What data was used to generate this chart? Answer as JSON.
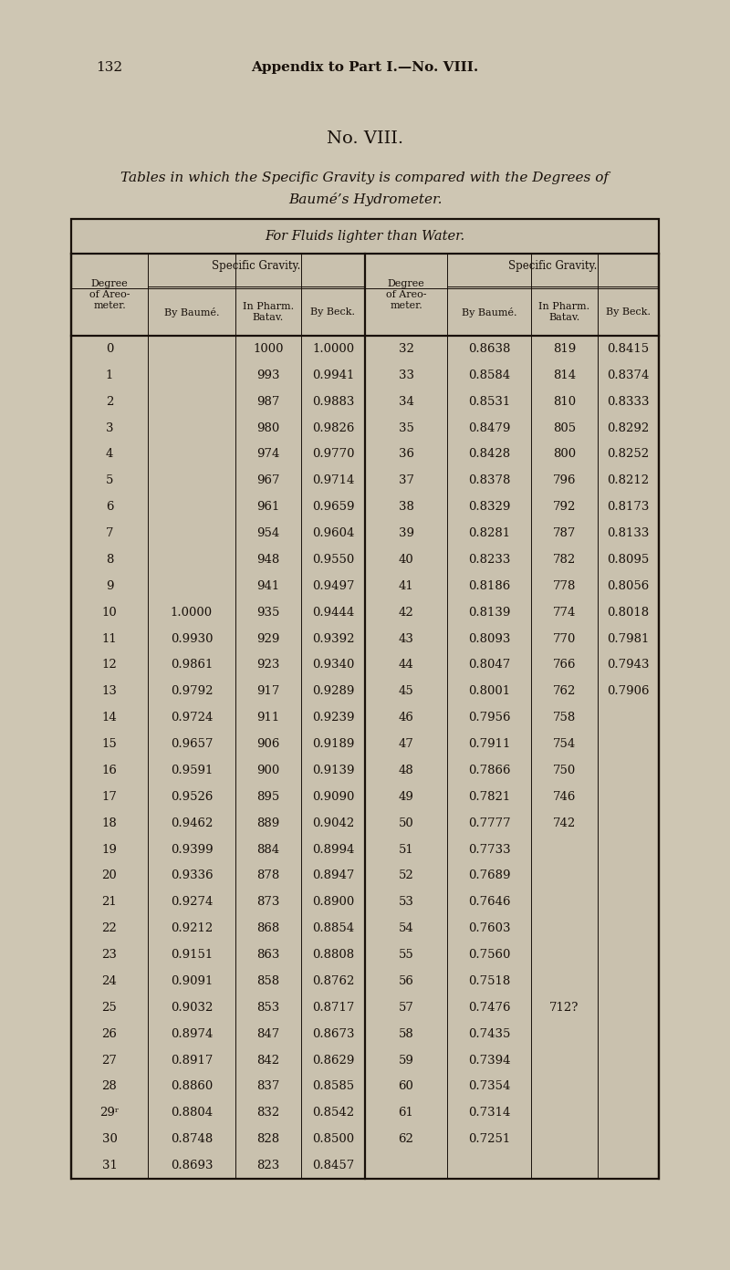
{
  "page_num": "132",
  "header_title": "Appendix to Part I.—No. VIII.",
  "title1": "No. VIII.",
  "title2": "Tables in which the Specific Gravity is compared with the Degrees of",
  "title3": "Baumé’s Hydrometer.",
  "subtitle": "For Fluids lighter than Water.",
  "sg_label": "Specific Gravity.",
  "deg_label": "Degree\nof Areo-\nmeter.",
  "sub_headers": [
    "By Baumé.",
    "In Pharm.\nBatav.",
    "By Beck."
  ],
  "rows_left": [
    [
      "0",
      "",
      "1000",
      "1.0000"
    ],
    [
      "1",
      "",
      "993",
      "0.9941"
    ],
    [
      "2",
      "",
      "987",
      "0.9883"
    ],
    [
      "3",
      "",
      "980",
      "0.9826"
    ],
    [
      "4",
      "",
      "974",
      "0.9770"
    ],
    [
      "5",
      "",
      "967",
      "0.9714"
    ],
    [
      "6",
      "",
      "961",
      "0.9659"
    ],
    [
      "7",
      "",
      "954",
      "0.9604"
    ],
    [
      "8",
      "",
      "948",
      "0.9550"
    ],
    [
      "9",
      "",
      "941",
      "0.9497"
    ],
    [
      "10",
      "1.0000",
      "935",
      "0.9444"
    ],
    [
      "11",
      "0.9930",
      "929",
      "0.9392"
    ],
    [
      "12",
      "0.9861",
      "923",
      "0.9340"
    ],
    [
      "13",
      "0.9792",
      "917",
      "0.9289"
    ],
    [
      "14",
      "0.9724",
      "911",
      "0.9239"
    ],
    [
      "15",
      "0.9657",
      "906",
      "0.9189"
    ],
    [
      "16",
      "0.9591",
      "900",
      "0.9139"
    ],
    [
      "17",
      "0.9526",
      "895",
      "0.9090"
    ],
    [
      "18",
      "0.9462",
      "889",
      "0.9042"
    ],
    [
      "19",
      "0.9399",
      "884",
      "0.8994"
    ],
    [
      "20",
      "0.9336",
      "878",
      "0.8947"
    ],
    [
      "21",
      "0.9274",
      "873",
      "0.8900"
    ],
    [
      "22",
      "0.9212",
      "868",
      "0.8854"
    ],
    [
      "23",
      "0.9151",
      "863",
      "0.8808"
    ],
    [
      "24",
      "0.9091",
      "858",
      "0.8762"
    ],
    [
      "25",
      "0.9032",
      "853",
      "0.8717"
    ],
    [
      "26",
      "0.8974",
      "847",
      "0.8673"
    ],
    [
      "27",
      "0.8917",
      "842",
      "0.8629"
    ],
    [
      "28",
      "0.8860",
      "837",
      "0.8585"
    ],
    [
      "29ʳ",
      "0.8804",
      "832",
      "0.8542"
    ],
    [
      "30",
      "0.8748",
      "828",
      "0.8500"
    ],
    [
      "31",
      "0.8693",
      "823",
      "0.8457"
    ]
  ],
  "rows_right": [
    [
      "32",
      "0.8638",
      "819",
      "0.8415"
    ],
    [
      "33",
      "0.8584",
      "814",
      "0.8374"
    ],
    [
      "34",
      "0.8531",
      "810",
      "0.8333"
    ],
    [
      "35",
      "0.8479",
      "805",
      "0.8292"
    ],
    [
      "36",
      "0.8428",
      "800",
      "0.8252"
    ],
    [
      "37",
      "0.8378",
      "796",
      "0.8212"
    ],
    [
      "38",
      "0.8329",
      "792",
      "0.8173"
    ],
    [
      "39",
      "0.8281",
      "787",
      "0.8133"
    ],
    [
      "40",
      "0.8233",
      "782",
      "0.8095"
    ],
    [
      "41",
      "0.8186",
      "778",
      "0.8056"
    ],
    [
      "42",
      "0.8139",
      "774",
      "0.8018"
    ],
    [
      "43",
      "0.8093",
      "770",
      "0.7981"
    ],
    [
      "44",
      "0.8047",
      "766",
      "0.7943"
    ],
    [
      "45",
      "0.8001",
      "762",
      "0.7906"
    ],
    [
      "46",
      "0.7956",
      "758",
      ""
    ],
    [
      "47",
      "0.7911",
      "754",
      ""
    ],
    [
      "48",
      "0.7866",
      "750",
      ""
    ],
    [
      "49",
      "0.7821",
      "746",
      ""
    ],
    [
      "50",
      "0.7777",
      "742",
      ""
    ],
    [
      "51",
      "0.7733",
      "",
      ""
    ],
    [
      "52",
      "0.7689",
      "",
      ""
    ],
    [
      "53",
      "0.7646",
      "",
      ""
    ],
    [
      "54",
      "0.7603",
      "",
      ""
    ],
    [
      "55",
      "0.7560",
      "",
      ""
    ],
    [
      "56",
      "0.7518",
      "",
      ""
    ],
    [
      "57",
      "0.7476",
      "712?",
      ""
    ],
    [
      "58",
      "0.7435",
      "",
      ""
    ],
    [
      "59",
      "0.7394",
      "",
      ""
    ],
    [
      "60",
      "0.7354",
      "",
      ""
    ],
    [
      "61",
      "0.7314",
      "",
      ""
    ],
    [
      "62",
      "0.7251",
      "",
      ""
    ]
  ],
  "bg_color": "#cec6b3",
  "text_color": "#18100a",
  "table_fill": "#c9c1ae",
  "lw_thick": 1.6,
  "lw_thin": 0.7,
  "fs_page_hdr": 11,
  "fs_title1": 14,
  "fs_title2": 11,
  "fs_subtitle": 10.5,
  "fs_sg": 8.5,
  "fs_deg": 8.0,
  "fs_subhdr": 8.0,
  "fs_cell": 9.5
}
